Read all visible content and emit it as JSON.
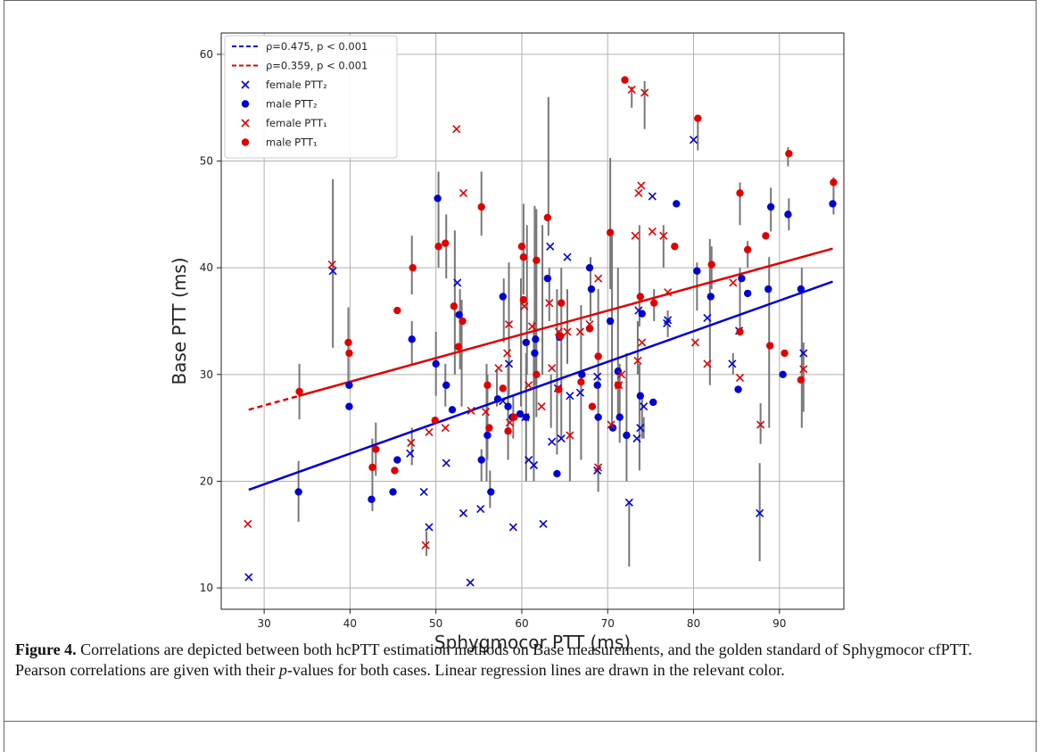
{
  "caption": {
    "label": "Figure 4.",
    "text_before_italic": " Correlations are depicted between both hcPTT estimation methods on Base measurements, and the golden standard of Sphygmocor cfPTT. Pearson correlations are given with their ",
    "italic": "p",
    "text_after_italic": "-values for both cases. Linear regression lines are drawn in the relevant color."
  },
  "chart_data": {
    "type": "scatter",
    "xlabel": "Sphygmocor PTT (ms)",
    "ylabel": "Base PTT (ms)",
    "xlim": [
      25,
      97.5
    ],
    "ylim": [
      8,
      62
    ],
    "xticks": [
      30,
      40,
      50,
      60,
      70,
      80,
      90
    ],
    "yticks": [
      10,
      20,
      30,
      40,
      50,
      60
    ],
    "grid": true,
    "legend_position": "top-left",
    "colors": {
      "blue": "#0000d0",
      "red": "#e00000",
      "errorbar": "#777777"
    },
    "legend": [
      {
        "text": "ρ=0.475, p < 0.001",
        "kind": "dashed-line",
        "color": "blue"
      },
      {
        "text": "ρ=0.359, p < 0.001",
        "kind": "dashed-line",
        "color": "red"
      },
      {
        "text": "female PTT₂",
        "kind": "x",
        "color": "blue"
      },
      {
        "text": "male PTT₂",
        "kind": "dot",
        "color": "blue"
      },
      {
        "text": "female PTT₁",
        "kind": "x",
        "color": "red"
      },
      {
        "text": "male PTT₁",
        "kind": "dot",
        "color": "red"
      }
    ],
    "regression": [
      {
        "color": "blue",
        "x": [
          28.2,
          96.2
        ],
        "y": [
          19.2,
          38.7
        ],
        "dashed_until": 28.2
      },
      {
        "color": "red",
        "x": [
          28.2,
          96.2
        ],
        "y": [
          26.7,
          41.8
        ],
        "dashed_until": 34.0
      }
    ],
    "series": [
      {
        "name": "female PTT₂",
        "marker": "x",
        "color": "blue",
        "points": [
          [
            28.2,
            11
          ],
          [
            38,
            39.7
          ],
          [
            48.6,
            19
          ],
          [
            49.2,
            15.7
          ],
          [
            52.5,
            38.6
          ],
          [
            53.2,
            17
          ],
          [
            54,
            10.5
          ],
          [
            55.2,
            17.4
          ],
          [
            58.5,
            31
          ],
          [
            59,
            15.7
          ],
          [
            60.8,
            22
          ],
          [
            61.4,
            21.5
          ],
          [
            62.5,
            16
          ],
          [
            63.3,
            42
          ],
          [
            63.5,
            23.7
          ],
          [
            64.6,
            24
          ],
          [
            65.3,
            41
          ],
          [
            65.6,
            28
          ],
          [
            66.8,
            28.3
          ],
          [
            68.8,
            21
          ],
          [
            68.8,
            29.8
          ],
          [
            72.5,
            18
          ],
          [
            73.4,
            24
          ],
          [
            73.6,
            36
          ],
          [
            73.8,
            25
          ],
          [
            74.2,
            27
          ],
          [
            75.2,
            46.7
          ],
          [
            76.9,
            34.8
          ],
          [
            77,
            35.1
          ],
          [
            80,
            52
          ],
          [
            81.6,
            35.3
          ],
          [
            84.5,
            31
          ],
          [
            85.3,
            34.1
          ],
          [
            87.7,
            17
          ],
          [
            92.8,
            32
          ],
          [
            47,
            22.6
          ],
          [
            51.2,
            21.7
          ],
          [
            57.8,
            27.5
          ],
          [
            60.4,
            26
          ],
          [
            64.2,
            28.7
          ]
        ]
      },
      {
        "name": "male PTT₂",
        "marker": "dot",
        "color": "blue",
        "points": [
          [
            34,
            19
          ],
          [
            39.9,
            27
          ],
          [
            39.9,
            29
          ],
          [
            42.5,
            18.3
          ],
          [
            45,
            19
          ],
          [
            45.5,
            22
          ],
          [
            47.2,
            33.3
          ],
          [
            50,
            31
          ],
          [
            50.2,
            46.5
          ],
          [
            51.2,
            29
          ],
          [
            51.9,
            26.7
          ],
          [
            52.7,
            35.6
          ],
          [
            55.3,
            22
          ],
          [
            56,
            24.3
          ],
          [
            56.4,
            19
          ],
          [
            57.8,
            37.3
          ],
          [
            58.4,
            27
          ],
          [
            58.9,
            26
          ],
          [
            59.8,
            26.3
          ],
          [
            60.5,
            26
          ],
          [
            60.5,
            33
          ],
          [
            61.5,
            32
          ],
          [
            61.6,
            33.3
          ],
          [
            63,
            39
          ],
          [
            64.1,
            20.7
          ],
          [
            64.4,
            33.5
          ],
          [
            67.9,
            40
          ],
          [
            68.1,
            38
          ],
          [
            68.9,
            26
          ],
          [
            70.3,
            35
          ],
          [
            70.6,
            25
          ],
          [
            71.2,
            30.3
          ],
          [
            71.4,
            26
          ],
          [
            72.2,
            24.3
          ],
          [
            73.8,
            28
          ],
          [
            74,
            35.7
          ],
          [
            75.3,
            27.4
          ],
          [
            78,
            46
          ],
          [
            80.4,
            39.7
          ],
          [
            82,
            37.3
          ],
          [
            85.2,
            28.6
          ],
          [
            85.6,
            39
          ],
          [
            86.3,
            37.6
          ],
          [
            88.7,
            38
          ],
          [
            89,
            45.7
          ],
          [
            90.4,
            30
          ],
          [
            91,
            45
          ],
          [
            92.5,
            38
          ],
          [
            96.2,
            46
          ],
          [
            57.2,
            27.7
          ],
          [
            67,
            30
          ],
          [
            68.8,
            29
          ]
        ]
      },
      {
        "name": "female PTT₁",
        "marker": "x",
        "color": "red",
        "points": [
          [
            28.1,
            16
          ],
          [
            37.9,
            40.3
          ],
          [
            47.1,
            23.6
          ],
          [
            48.8,
            14
          ],
          [
            49.2,
            24.6
          ],
          [
            51.1,
            25
          ],
          [
            52.4,
            53
          ],
          [
            53.2,
            47
          ],
          [
            54.1,
            26.6
          ],
          [
            55.8,
            26.5
          ],
          [
            57.3,
            30.6
          ],
          [
            58.3,
            32
          ],
          [
            58.5,
            34.7
          ],
          [
            58.6,
            25.5
          ],
          [
            60.8,
            29
          ],
          [
            61.2,
            34.5
          ],
          [
            62.3,
            27
          ],
          [
            63.2,
            36.7
          ],
          [
            63.5,
            30.6
          ],
          [
            64.3,
            34
          ],
          [
            65.3,
            34
          ],
          [
            65.6,
            24.3
          ],
          [
            66.8,
            34
          ],
          [
            67.9,
            34.7
          ],
          [
            68.9,
            39
          ],
          [
            68.9,
            21.3
          ],
          [
            70.4,
            25.3
          ],
          [
            71.3,
            29
          ],
          [
            72.8,
            56.7
          ],
          [
            73.2,
            43
          ],
          [
            73.5,
            31.3
          ],
          [
            73.6,
            47
          ],
          [
            73.9,
            47.7
          ],
          [
            74,
            33
          ],
          [
            74.3,
            56.4
          ],
          [
            75.2,
            43.4
          ],
          [
            76.5,
            43
          ],
          [
            77,
            37.7
          ],
          [
            80.2,
            33
          ],
          [
            81.6,
            31
          ],
          [
            84.6,
            38.6
          ],
          [
            85.4,
            29.7
          ],
          [
            87.8,
            25.3
          ],
          [
            92.8,
            30.5
          ],
          [
            60.3,
            36.4
          ],
          [
            71.6,
            30
          ]
        ]
      },
      {
        "name": "male PTT₁",
        "marker": "dot",
        "color": "red",
        "points": [
          [
            34.1,
            28.4
          ],
          [
            39.8,
            33
          ],
          [
            39.9,
            32
          ],
          [
            42.6,
            21.3
          ],
          [
            43,
            23
          ],
          [
            45.2,
            21
          ],
          [
            45.5,
            36
          ],
          [
            47.3,
            40
          ],
          [
            49.9,
            25.7
          ],
          [
            50.3,
            42
          ],
          [
            51.1,
            42.3
          ],
          [
            52.1,
            36.4
          ],
          [
            52.6,
            32.6
          ],
          [
            53.1,
            35
          ],
          [
            55.3,
            45.7
          ],
          [
            56,
            29
          ],
          [
            56.2,
            25
          ],
          [
            57.8,
            28.7
          ],
          [
            58.4,
            24.7
          ],
          [
            59.1,
            26
          ],
          [
            60,
            42
          ],
          [
            60.2,
            41
          ],
          [
            60.2,
            37
          ],
          [
            61.7,
            40.7
          ],
          [
            61.7,
            30
          ],
          [
            63,
            44.7
          ],
          [
            64.3,
            28.6
          ],
          [
            64.5,
            33.6
          ],
          [
            64.6,
            36.7
          ],
          [
            66.9,
            29.3
          ],
          [
            67.9,
            34.3
          ],
          [
            68.2,
            27
          ],
          [
            68.9,
            31.7
          ],
          [
            70.3,
            43.3
          ],
          [
            71.2,
            29
          ],
          [
            72,
            57.6
          ],
          [
            73.8,
            37.3
          ],
          [
            75.4,
            36.7
          ],
          [
            77.8,
            42
          ],
          [
            80.5,
            54
          ],
          [
            82.1,
            40.3
          ],
          [
            85.4,
            34
          ],
          [
            85.4,
            47
          ],
          [
            86.3,
            41.7
          ],
          [
            88.4,
            43
          ],
          [
            88.9,
            32.7
          ],
          [
            90.6,
            32
          ],
          [
            91.1,
            50.7
          ],
          [
            92.5,
            29.5
          ],
          [
            96.3,
            48
          ]
        ]
      }
    ],
    "errorbars": [
      [
        38,
        32.5,
        48.3
      ],
      [
        39.8,
        29,
        36.3
      ],
      [
        34.1,
        25.8,
        31
      ],
      [
        34,
        16.2,
        21.9
      ],
      [
        42.6,
        17.2,
        24
      ],
      [
        43,
        20.5,
        25.5
      ],
      [
        47.2,
        31,
        35
      ],
      [
        47.2,
        37.5,
        43
      ],
      [
        47.2,
        21.5,
        25
      ],
      [
        48.9,
        13,
        15.3
      ],
      [
        50,
        28,
        34
      ],
      [
        50.3,
        40,
        49
      ],
      [
        51.2,
        39,
        45
      ],
      [
        51.1,
        27,
        31
      ],
      [
        52.2,
        30,
        43.5
      ],
      [
        52.8,
        30.5,
        38
      ],
      [
        53,
        27,
        37
      ],
      [
        55.3,
        20,
        23
      ],
      [
        55.3,
        43,
        49
      ],
      [
        55.9,
        20,
        31
      ],
      [
        56,
        22,
        30
      ],
      [
        56.3,
        17.5,
        21
      ],
      [
        57.1,
        27,
        30.5
      ],
      [
        57.9,
        33,
        39
      ],
      [
        58.4,
        22,
        31
      ],
      [
        58.5,
        28,
        40.5
      ],
      [
        59,
        24,
        28
      ],
      [
        59.9,
        27,
        39
      ],
      [
        60.2,
        37.5,
        46
      ],
      [
        60.5,
        20,
        32
      ],
      [
        60.6,
        30,
        44
      ],
      [
        61.4,
        20,
        35
      ],
      [
        61.5,
        29,
        45.8
      ],
      [
        61.7,
        26,
        45.5
      ],
      [
        62.4,
        30,
        44
      ],
      [
        63.1,
        43,
        56
      ],
      [
        63.2,
        35,
        40
      ],
      [
        63.4,
        25,
        30
      ],
      [
        64.1,
        22.5,
        38
      ],
      [
        64.6,
        24,
        40
      ],
      [
        65.3,
        31,
        38
      ],
      [
        65.6,
        20,
        28
      ],
      [
        66.9,
        22,
        36.5
      ],
      [
        68,
        35,
        41
      ],
      [
        68.9,
        19,
        38
      ],
      [
        70.3,
        38,
        50.3
      ],
      [
        70.5,
        25,
        43
      ],
      [
        71.2,
        26,
        40
      ],
      [
        71.4,
        23.6,
        31
      ],
      [
        72.2,
        20,
        32
      ],
      [
        72.5,
        12,
        18
      ],
      [
        72.8,
        55,
        57
      ],
      [
        73.5,
        30,
        35
      ],
      [
        73.7,
        34.5,
        44
      ],
      [
        73.7,
        21,
        31
      ],
      [
        74,
        24,
        28
      ],
      [
        74.3,
        53,
        57.5
      ],
      [
        75.4,
        35,
        38
      ],
      [
        76.5,
        40,
        44
      ],
      [
        77,
        33.5,
        36
      ],
      [
        80.4,
        36,
        40.5
      ],
      [
        80.5,
        51,
        54
      ],
      [
        81.9,
        29,
        42.7
      ],
      [
        82.1,
        38,
        42
      ],
      [
        84.6,
        30,
        32
      ],
      [
        85.4,
        34,
        40
      ],
      [
        85.4,
        44,
        48
      ],
      [
        86.3,
        40,
        42.5
      ],
      [
        87.7,
        12.5,
        21.7
      ],
      [
        87.8,
        23.5,
        27.3
      ],
      [
        88.8,
        25,
        41
      ],
      [
        89,
        43.4,
        47.5
      ],
      [
        91,
        49.5,
        51.3
      ],
      [
        91.1,
        43.5,
        46.5
      ],
      [
        92.6,
        25,
        40
      ],
      [
        92.8,
        26.5,
        33
      ],
      [
        96.3,
        45,
        48.5
      ],
      [
        74.2,
        24,
        26
      ]
    ]
  }
}
